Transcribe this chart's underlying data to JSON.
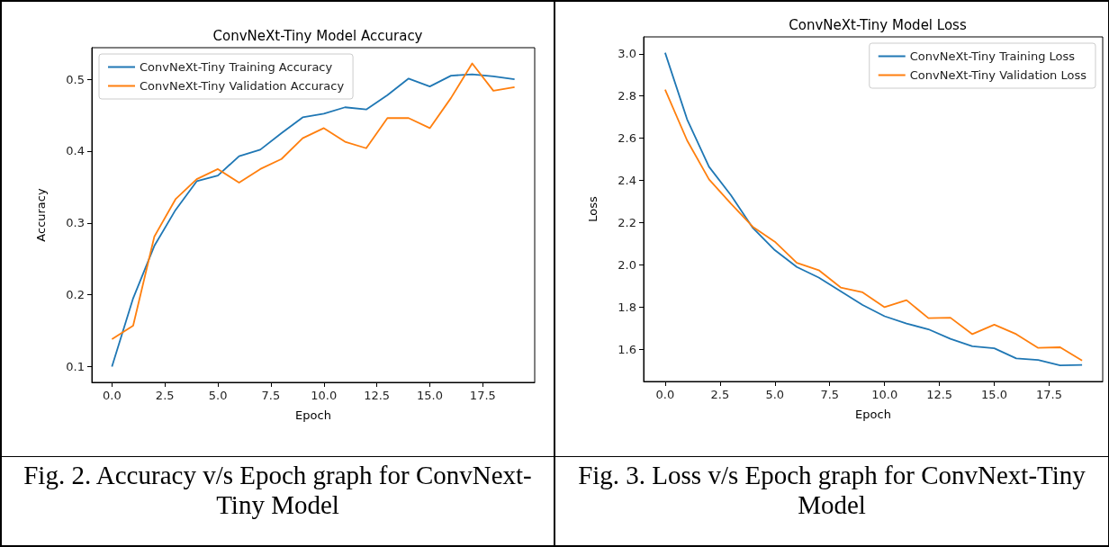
{
  "chart_data": [
    {
      "type": "line",
      "title": "ConvNeXt-Tiny Model Accuracy",
      "xlabel": "Epoch",
      "ylabel": "Accuracy",
      "x": [
        0,
        1,
        2,
        3,
        4,
        5,
        6,
        7,
        8,
        9,
        10,
        11,
        12,
        13,
        14,
        15,
        16,
        17,
        18,
        19
      ],
      "series": [
        {
          "name": "ConvNeXt-Tiny Training Accuracy",
          "color": "#1f77b4",
          "values": [
            0.1,
            0.195,
            0.268,
            0.318,
            0.358,
            0.366,
            0.393,
            0.402,
            0.425,
            0.447,
            0.452,
            0.461,
            0.458,
            0.478,
            0.501,
            0.49,
            0.505,
            0.507,
            0.504,
            0.5
          ]
        },
        {
          "name": "ConvNeXt-Tiny Validation Accuracy",
          "color": "#ff7f0e",
          "values": [
            0.138,
            0.157,
            0.281,
            0.333,
            0.361,
            0.375,
            0.356,
            0.375,
            0.389,
            0.418,
            0.432,
            0.413,
            0.404,
            0.446,
            0.446,
            0.432,
            0.474,
            0.522,
            0.484,
            0.489
          ]
        }
      ],
      "xlim": [
        -0.95,
        19.95
      ],
      "xticks": [
        {
          "value": 0,
          "label": "0.0"
        },
        {
          "value": 2.5,
          "label": "2.5"
        },
        {
          "value": 5,
          "label": "5.0"
        },
        {
          "value": 7.5,
          "label": "7.5"
        },
        {
          "value": 10,
          "label": "10.0"
        },
        {
          "value": 12.5,
          "label": "12.5"
        },
        {
          "value": 15,
          "label": "15.0"
        },
        {
          "value": 17.5,
          "label": "17.5"
        }
      ],
      "ylim": [
        0.078,
        0.544
      ],
      "yticks": [
        0.1,
        0.2,
        0.3,
        0.4,
        0.5
      ],
      "grid": false,
      "legend": "top left",
      "marker": "none",
      "line_style": "solid",
      "annotations": [
        "Fig. 2. Accuracy v/s Epoch graph for ConvNext-Tiny Model"
      ]
    },
    {
      "type": "line",
      "title": "ConvNeXt-Tiny Model Loss",
      "xlabel": "Epoch",
      "ylabel": "Loss",
      "x": [
        0,
        1,
        2,
        3,
        4,
        5,
        6,
        7,
        8,
        9,
        10,
        11,
        12,
        13,
        14,
        15,
        16,
        17,
        18,
        19
      ],
      "series": [
        {
          "name": "ConvNeXt-Tiny Training Loss",
          "color": "#1f77b4",
          "values": [
            3.005,
            2.69,
            2.465,
            2.33,
            2.175,
            2.07,
            1.99,
            1.94,
            1.875,
            1.81,
            1.757,
            1.722,
            1.695,
            1.65,
            1.615,
            1.605,
            1.557,
            1.55,
            1.524,
            1.526
          ]
        },
        {
          "name": "ConvNeXt-Tiny Validation Loss",
          "color": "#ff7f0e",
          "values": [
            2.83,
            2.59,
            2.405,
            2.29,
            2.18,
            2.11,
            2.01,
            1.975,
            1.893,
            1.87,
            1.8,
            1.833,
            1.748,
            1.75,
            1.672,
            1.717,
            1.672,
            1.607,
            1.61,
            1.547
          ]
        }
      ],
      "xlim": [
        -0.98,
        19.94
      ],
      "xticks": [
        {
          "value": 0,
          "label": "0.0"
        },
        {
          "value": 2.5,
          "label": "2.5"
        },
        {
          "value": 5,
          "label": "5.0"
        },
        {
          "value": 7.5,
          "label": "7.5"
        },
        {
          "value": 10,
          "label": "10.0"
        },
        {
          "value": 12.5,
          "label": "12.5"
        },
        {
          "value": 15,
          "label": "15.0"
        },
        {
          "value": 17.5,
          "label": "17.5"
        }
      ],
      "ylim": [
        1.448,
        3.08
      ],
      "yticks": [
        1.6,
        1.8,
        {
          "value": 2,
          "label": "2.0"
        },
        2.2,
        2.4,
        2.6,
        2.8,
        {
          "value": 3,
          "label": "3.0"
        }
      ],
      "grid": false,
      "legend": "top right",
      "marker": "none",
      "line_style": "solid",
      "annotations": [
        "Fig. 3. Loss v/s Epoch graph for ConvNext-Tiny Model"
      ]
    }
  ]
}
